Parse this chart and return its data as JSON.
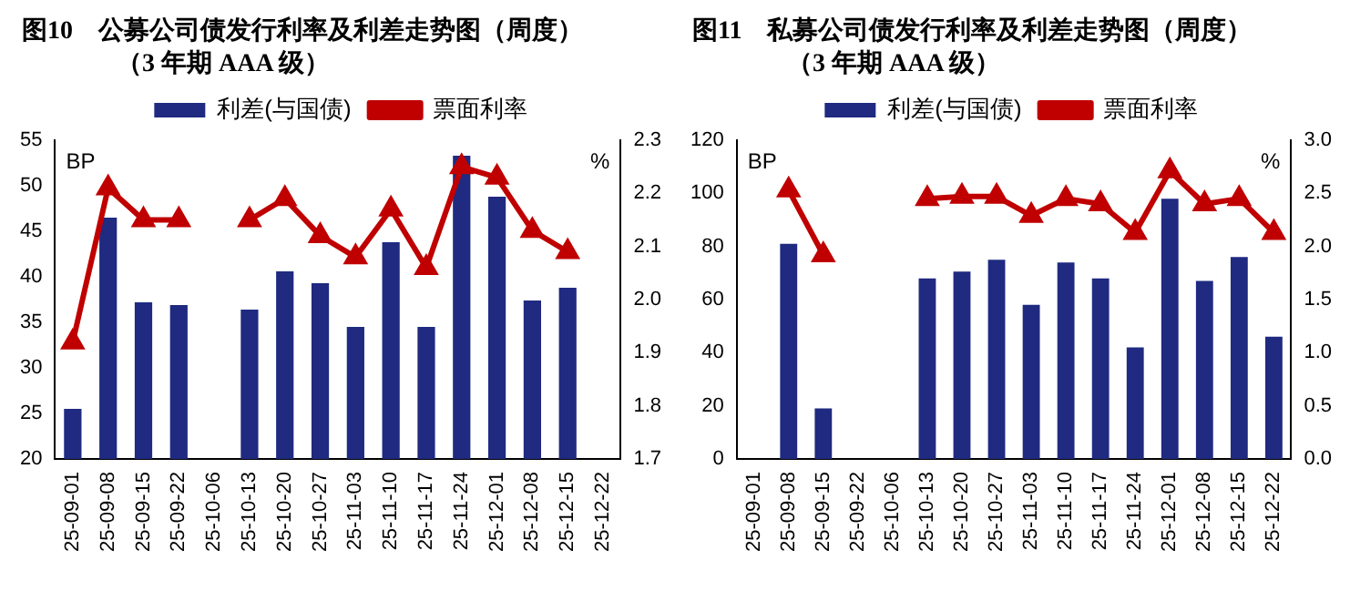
{
  "chart_data": [
    {
      "type": "bar",
      "title": "图10　公募公司债发行利率及利差走势图（周度）",
      "subtitle": "（3 年期 AAA 级）",
      "ylabel": "BP",
      "y2label": "%",
      "legend": "top",
      "grid": false,
      "categories": [
        "25-09-01",
        "25-09-08",
        "25-09-15",
        "25-09-22",
        "25-10-06",
        "25-10-13",
        "25-10-20",
        "25-10-27",
        "25-11-03",
        "25-11-10",
        "25-11-17",
        "25-11-24",
        "25-12-01",
        "25-12-08",
        "25-12-15",
        "25-12-22"
      ],
      "ylim": [
        20,
        55
      ],
      "yticks": [
        20,
        25,
        30,
        35,
        40,
        45,
        50,
        55
      ],
      "y2lim": [
        1.7,
        2.3
      ],
      "y2ticks": [
        1.7,
        1.8,
        1.9,
        {
          "value": 2,
          "label": "2.0"
        },
        2.1,
        2.2,
        2.3
      ],
      "series": [
        {
          "name": "利差(与国债)",
          "color": "#1f2a80",
          "values": [
            25.5,
            46.5,
            37.2,
            36.9,
            null,
            36.4,
            40.6,
            39.3,
            34.5,
            43.8,
            34.5,
            53.3,
            48.8,
            37.4,
            38.8,
            null
          ]
        },
        {
          "name": "票面利率",
          "type": "line",
          "axis": "y2",
          "color": "#c00000",
          "marker": "triangle",
          "line_style": "solid",
          "values": [
            1.92,
            2.21,
            2.15,
            2.15,
            null,
            2.15,
            2.19,
            2.12,
            2.08,
            2.17,
            2.06,
            2.25,
            2.23,
            2.13,
            2.09,
            null
          ]
        }
      ]
    },
    {
      "type": "bar",
      "title": "图11　私募公司债发行利率及利差走势图（周度）",
      "subtitle": "（3 年期 AAA 级）",
      "ylabel": "BP",
      "y2label": "%",
      "legend": "top",
      "grid": false,
      "categories": [
        "25-09-01",
        "25-09-08",
        "25-09-15",
        "25-09-22",
        "25-10-06",
        "25-10-13",
        "25-10-20",
        "25-10-27",
        "25-11-03",
        "25-11-10",
        "25-11-17",
        "25-11-24",
        "25-12-01",
        "25-12-08",
        "25-12-15",
        "25-12-22"
      ],
      "ylim": [
        0,
        120
      ],
      "yticks": [
        0,
        20,
        40,
        60,
        80,
        100,
        120
      ],
      "y2lim": [
        0,
        3
      ],
      "y2ticks": [
        {
          "value": 0,
          "label": "0.0"
        },
        0.5,
        {
          "value": 1,
          "label": "1.0"
        },
        1.5,
        {
          "value": 2,
          "label": "2.0"
        },
        2.5,
        {
          "value": 3,
          "label": "3.0"
        }
      ],
      "series": [
        {
          "name": "利差(与国债)",
          "color": "#1f2a80",
          "values": [
            null,
            81,
            19,
            null,
            null,
            68,
            70.5,
            75,
            58,
            74,
            68,
            42,
            98,
            67,
            76,
            46
          ]
        },
        {
          "name": "票面利率",
          "type": "line",
          "axis": "y2",
          "color": "#c00000",
          "marker": "triangle",
          "line_style": "solid",
          "values": [
            null,
            2.53,
            1.92,
            null,
            null,
            2.45,
            2.47,
            2.47,
            2.29,
            2.45,
            2.4,
            2.13,
            2.71,
            2.4,
            2.45,
            2.13
          ]
        }
      ]
    }
  ]
}
